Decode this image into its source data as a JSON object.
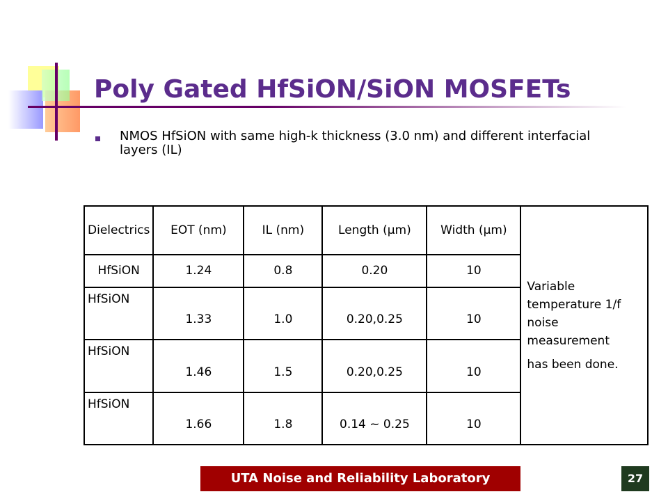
{
  "title": "Poly Gated HfSiON/SiON MOSFETs",
  "bullet": "NMOS HfSiON with same high-k thickness (3.0 nm) and different interfacial layers (IL)",
  "table": {
    "header": [
      "Dielectrics",
      "EOT (nm)",
      "IL (nm)",
      "Length (µm)",
      "Width (µm)"
    ],
    "rows": [
      [
        "HfSiON",
        "1.24",
        "0.8",
        "0.20",
        "10"
      ],
      [
        "HfSiON",
        "1.33",
        "1.0",
        "0.20,0.25",
        "10"
      ],
      [
        "HfSiON",
        "1.46",
        "1.5",
        "0.20,0.25",
        "10"
      ],
      [
        "HfSiON",
        "1.66",
        "1.8",
        "0.14 ~ 0.25",
        "10"
      ]
    ],
    "note": [
      "Variable temperature 1/f noise measurement",
      "has been done."
    ]
  },
  "footer": "UTA Noise and Reliability Laboratory",
  "page_number": "27"
}
